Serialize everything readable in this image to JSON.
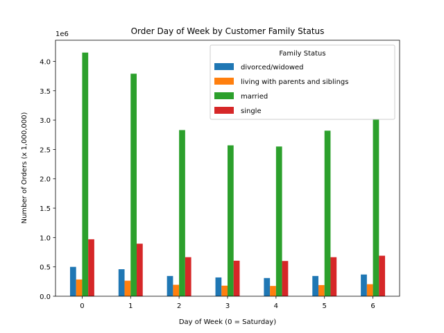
{
  "chart_data": {
    "type": "bar",
    "title": "Order Day of Week by Customer Family Status",
    "xlabel": "Day of Week (0 = Saturday)",
    "ylabel": "Number of Orders (x 1,000,000)",
    "y_offset_text": "1e6",
    "categories": [
      "0",
      "1",
      "2",
      "3",
      "4",
      "5",
      "6"
    ],
    "ylim": [
      0,
      4360000
    ],
    "yticks": [
      0,
      500000,
      1000000,
      1500000,
      2000000,
      2500000,
      3000000,
      3500000,
      4000000
    ],
    "ytick_labels": [
      "0.0",
      "0.5",
      "1.0",
      "1.5",
      "2.0",
      "2.5",
      "3.0",
      "3.5",
      "4.0"
    ],
    "grid": false,
    "legend": {
      "title": "Family Status",
      "placement": "top-right"
    },
    "series": [
      {
        "name": "divorced/widowed",
        "color": "#1f77b4",
        "values": [
          500000,
          460000,
          345000,
          320000,
          310000,
          345000,
          370000
        ]
      },
      {
        "name": "living with parents and siblings",
        "color": "#ff7f0e",
        "values": [
          285000,
          265000,
          195000,
          180000,
          175000,
          190000,
          205000
        ]
      },
      {
        "name": "married",
        "color": "#2ca02c",
        "values": [
          4150000,
          3790000,
          2830000,
          2570000,
          2550000,
          2820000,
          3020000
        ]
      },
      {
        "name": "single",
        "color": "#d62728",
        "values": [
          970000,
          895000,
          665000,
          605000,
          600000,
          665000,
          690000
        ]
      }
    ]
  }
}
